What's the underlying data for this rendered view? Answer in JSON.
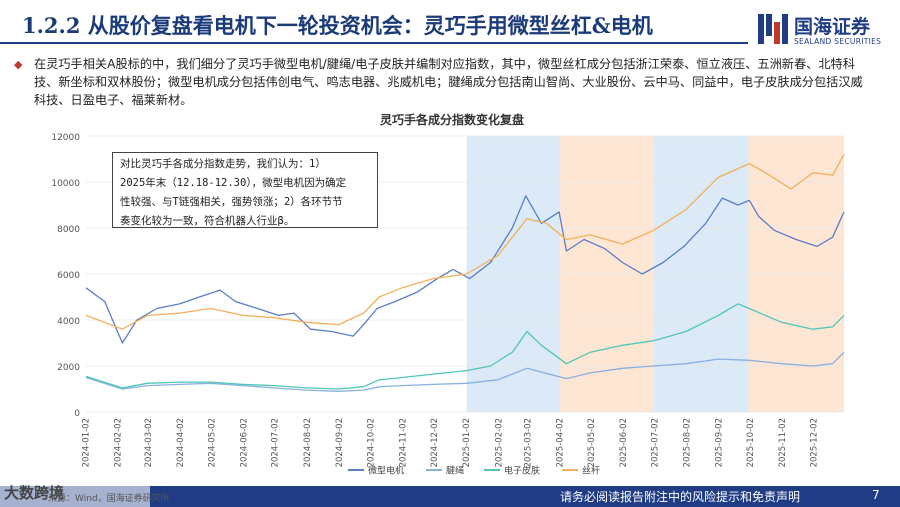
{
  "header": {
    "title": "1.2.2 从股价复盘看电机下一轮投资机会：灵巧手用微型丝杠&电机",
    "logo_cn": "国海证券",
    "logo_en": "SEALAND SECURITIES"
  },
  "body": {
    "paragraph": "在灵巧手相关A股标的中，我们细分了灵巧手微型电机/腱绳/电子皮肤并编制对应指数，其中，微型丝杠成分包括浙江荣泰、恒立液压、五洲新春、北特科技、新坐标和双林股份；微型电机成分包括伟创电气、鸣志电器、兆威机电；腱绳成分包括南山智尚、大业股份、云中马、同益中，电子皮肤成分包括汉威科技、日盈电子、福莱新材。"
  },
  "annotation": {
    "lines": [
      "对比灵巧手各成分指数走势，我们认为：1）",
      "2025年末（12.18-12.30），微型电机因为确定",
      "性较强、与T链强相关，强势领涨；2）各环节节",
      "奏变化较为一致，符合机器人行业β。"
    ]
  },
  "footer": {
    "watermark": "大数跨境",
    "source": "来源：Wind，国海证券研究所",
    "disclaimer": "请务必阅读报告附注中的风险提示和免责声明",
    "page": "7"
  },
  "colors": {
    "brand": "#1f3c85",
    "band_blue": "#dce9f7",
    "band_orange": "#fde6d3",
    "series_micro_motor": "#5b7ec9",
    "series_tendon": "#8ab0de",
    "series_eskin": "#4fc7b4",
    "series_screw": "#f2b05a"
  },
  "chart_data": {
    "type": "line",
    "title": "灵巧手各成分指数变化复盘",
    "ylim": [
      0,
      12000
    ],
    "yticks": [
      0,
      2000,
      4000,
      6000,
      8000,
      10000,
      12000
    ],
    "xlim": [
      "2024-01-02",
      "2025-12-31"
    ],
    "xticks": [
      "2024-01-02",
      "2024-02-02",
      "2024-03-02",
      "2024-04-02",
      "2024-05-02",
      "2024-06-02",
      "2024-07-02",
      "2024-08-02",
      "2024-09-02",
      "2024-10-02",
      "2024-11-02",
      "2024-12-02",
      "2025-01-02",
      "2025-02-02",
      "2025-03-02",
      "2025-04-02",
      "2025-05-02",
      "2025-06-02",
      "2025-07-02",
      "2025-08-02",
      "2025-09-02",
      "2025-10-02",
      "2025-11-02",
      "2025-12-02"
    ],
    "bands": [
      {
        "start": "2025-01-02",
        "end": "2025-04-02",
        "color": "blue"
      },
      {
        "start": "2025-04-02",
        "end": "2025-07-01",
        "color": "orange"
      },
      {
        "start": "2025-07-01",
        "end": "2025-09-30",
        "color": "blue"
      },
      {
        "start": "2025-09-30",
        "end": "2025-12-31",
        "color": "orange"
      }
    ],
    "legend_position": "bottom",
    "series": [
      {
        "name": "微型电机",
        "color": "#5b7ec9",
        "points": [
          [
            "2024-01-02",
            5400
          ],
          [
            "2024-01-20",
            4800
          ],
          [
            "2024-02-06",
            3000
          ],
          [
            "2024-02-20",
            4000
          ],
          [
            "2024-03-10",
            4500
          ],
          [
            "2024-04-01",
            4700
          ],
          [
            "2024-04-20",
            5000
          ],
          [
            "2024-05-10",
            5300
          ],
          [
            "2024-05-25",
            4800
          ],
          [
            "2024-06-15",
            4500
          ],
          [
            "2024-07-05",
            4200
          ],
          [
            "2024-07-20",
            4300
          ],
          [
            "2024-08-05",
            3600
          ],
          [
            "2024-08-25",
            3500
          ],
          [
            "2024-09-15",
            3300
          ],
          [
            "2024-09-25",
            3800
          ],
          [
            "2024-10-08",
            4500
          ],
          [
            "2024-10-25",
            4800
          ],
          [
            "2024-11-15",
            5200
          ],
          [
            "2024-12-05",
            5800
          ],
          [
            "2024-12-20",
            6200
          ],
          [
            "2025-01-05",
            5800
          ],
          [
            "2025-01-25",
            6500
          ],
          [
            "2025-02-15",
            8000
          ],
          [
            "2025-02-28",
            9400
          ],
          [
            "2025-03-15",
            8200
          ],
          [
            "2025-04-01",
            8700
          ],
          [
            "2025-04-08",
            7000
          ],
          [
            "2025-04-25",
            7500
          ],
          [
            "2025-05-15",
            7100
          ],
          [
            "2025-06-01",
            6500
          ],
          [
            "2025-06-20",
            6000
          ],
          [
            "2025-07-10",
            6500
          ],
          [
            "2025-07-30",
            7200
          ],
          [
            "2025-08-20",
            8200
          ],
          [
            "2025-09-05",
            9300
          ],
          [
            "2025-09-20",
            9000
          ],
          [
            "2025-10-01",
            9200
          ],
          [
            "2025-10-10",
            8500
          ],
          [
            "2025-10-25",
            7900
          ],
          [
            "2025-11-15",
            7500
          ],
          [
            "2025-12-05",
            7200
          ],
          [
            "2025-12-20",
            7600
          ],
          [
            "2025-12-31",
            8700
          ]
        ]
      },
      {
        "name": "腱绳",
        "color": "#8ab0de",
        "points": [
          [
            "2024-01-02",
            1500
          ],
          [
            "2024-02-06",
            1000
          ],
          [
            "2024-03-01",
            1150
          ],
          [
            "2024-04-01",
            1200
          ],
          [
            "2024-05-01",
            1250
          ],
          [
            "2024-06-01",
            1150
          ],
          [
            "2024-07-01",
            1050
          ],
          [
            "2024-08-01",
            950
          ],
          [
            "2024-09-01",
            900
          ],
          [
            "2024-09-25",
            950
          ],
          [
            "2024-10-10",
            1100
          ],
          [
            "2024-11-01",
            1150
          ],
          [
            "2024-12-01",
            1200
          ],
          [
            "2025-01-02",
            1250
          ],
          [
            "2025-02-01",
            1400
          ],
          [
            "2025-03-01",
            1900
          ],
          [
            "2025-04-08",
            1450
          ],
          [
            "2025-05-01",
            1700
          ],
          [
            "2025-06-01",
            1900
          ],
          [
            "2025-07-01",
            2000
          ],
          [
            "2025-08-01",
            2100
          ],
          [
            "2025-09-01",
            2300
          ],
          [
            "2025-10-01",
            2250
          ],
          [
            "2025-11-01",
            2100
          ],
          [
            "2025-12-01",
            2000
          ],
          [
            "2025-12-20",
            2100
          ],
          [
            "2025-12-31",
            2600
          ]
        ]
      },
      {
        "name": "电子皮肤",
        "color": "#4fc7b4",
        "points": [
          [
            "2024-01-02",
            1550
          ],
          [
            "2024-02-06",
            1050
          ],
          [
            "2024-03-01",
            1250
          ],
          [
            "2024-04-01",
            1300
          ],
          [
            "2024-05-01",
            1300
          ],
          [
            "2024-06-01",
            1200
          ],
          [
            "2024-07-01",
            1150
          ],
          [
            "2024-08-01",
            1050
          ],
          [
            "2024-09-01",
            1000
          ],
          [
            "2024-09-25",
            1100
          ],
          [
            "2024-10-10",
            1400
          ],
          [
            "2024-11-01",
            1500
          ],
          [
            "2024-12-01",
            1650
          ],
          [
            "2025-01-02",
            1800
          ],
          [
            "2025-01-25",
            2000
          ],
          [
            "2025-02-15",
            2600
          ],
          [
            "2025-03-01",
            3500
          ],
          [
            "2025-03-15",
            2900
          ],
          [
            "2025-04-08",
            2100
          ],
          [
            "2025-05-01",
            2600
          ],
          [
            "2025-06-01",
            2900
          ],
          [
            "2025-07-01",
            3100
          ],
          [
            "2025-08-01",
            3500
          ],
          [
            "2025-09-01",
            4200
          ],
          [
            "2025-09-20",
            4700
          ],
          [
            "2025-10-01",
            4500
          ],
          [
            "2025-11-01",
            3900
          ],
          [
            "2025-12-01",
            3600
          ],
          [
            "2025-12-20",
            3700
          ],
          [
            "2025-12-31",
            4200
          ]
        ]
      },
      {
        "name": "丝杆",
        "color": "#f2b05a",
        "points": [
          [
            "2024-01-02",
            4200
          ],
          [
            "2024-02-06",
            3600
          ],
          [
            "2024-03-01",
            4200
          ],
          [
            "2024-04-01",
            4300
          ],
          [
            "2024-05-01",
            4500
          ],
          [
            "2024-06-01",
            4200
          ],
          [
            "2024-07-01",
            4100
          ],
          [
            "2024-08-01",
            3900
          ],
          [
            "2024-09-01",
            3800
          ],
          [
            "2024-09-25",
            4300
          ],
          [
            "2024-10-10",
            5000
          ],
          [
            "2024-11-01",
            5400
          ],
          [
            "2024-12-01",
            5800
          ],
          [
            "2025-01-02",
            6000
          ],
          [
            "2025-02-01",
            6800
          ],
          [
            "2025-03-01",
            8400
          ],
          [
            "2025-03-20",
            8200
          ],
          [
            "2025-04-08",
            7500
          ],
          [
            "2025-05-01",
            7700
          ],
          [
            "2025-06-01",
            7300
          ],
          [
            "2025-07-01",
            7900
          ],
          [
            "2025-08-01",
            8800
          ],
          [
            "2025-09-01",
            10200
          ],
          [
            "2025-10-01",
            10800
          ],
          [
            "2025-10-20",
            10300
          ],
          [
            "2025-11-10",
            9700
          ],
          [
            "2025-12-01",
            10400
          ],
          [
            "2025-12-20",
            10300
          ],
          [
            "2025-12-31",
            11200
          ]
        ]
      }
    ]
  }
}
